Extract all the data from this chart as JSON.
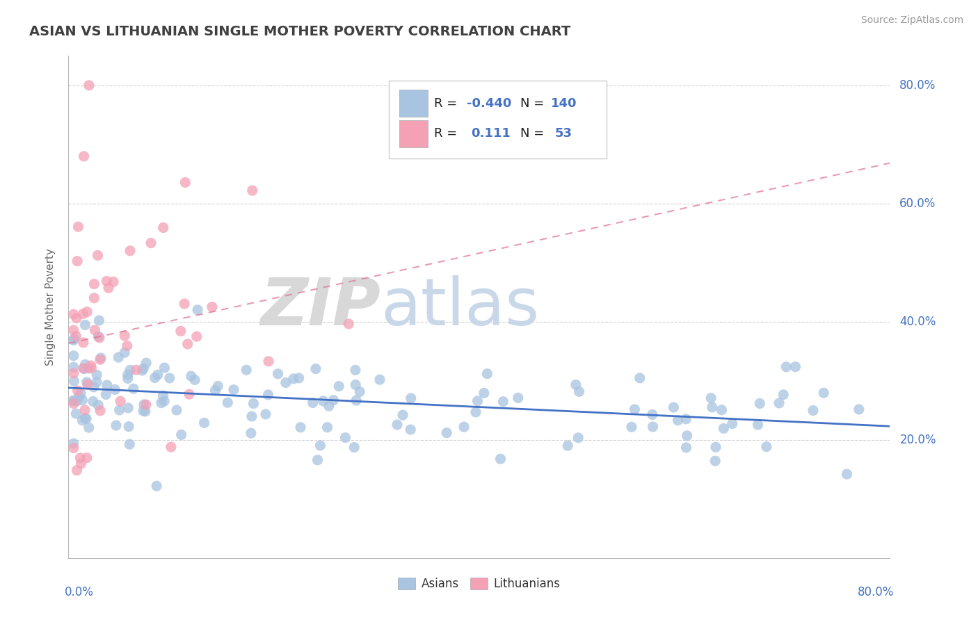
{
  "title": "ASIAN VS LITHUANIAN SINGLE MOTHER POVERTY CORRELATION CHART",
  "source": "Source: ZipAtlas.com",
  "ylabel": "Single Mother Poverty",
  "xlim": [
    0.0,
    0.8
  ],
  "ylim": [
    0.0,
    0.85
  ],
  "asian_color": "#a8c4e0",
  "lithuanian_color": "#f4a0b5",
  "asian_line_color": "#4472c4",
  "lithuanian_line_color": "#e07090",
  "r_asian": -0.44,
  "n_asian": 140,
  "r_lithuanian": 0.111,
  "n_lithuanian": 53,
  "watermark_zip": "ZIP",
  "watermark_atlas": "atlas",
  "legend_text_color": "#4472c4",
  "legend_r_label_color": "#000000",
  "title_color": "#404040"
}
